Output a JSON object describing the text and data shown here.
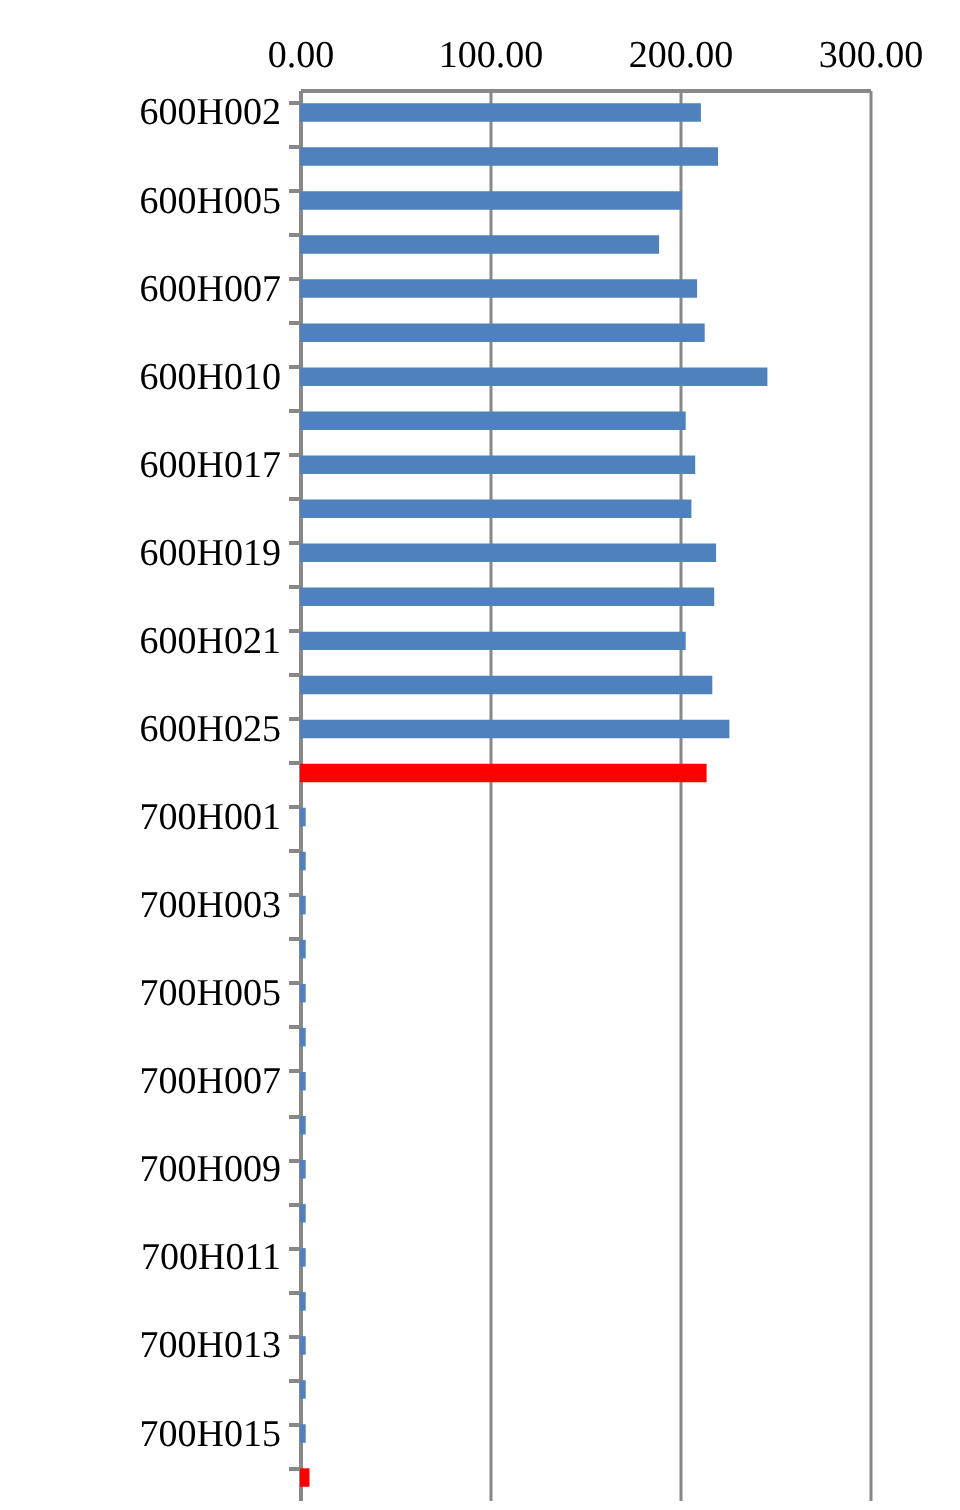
{
  "chart_data": {
    "type": "bar",
    "orientation": "horizontal",
    "categories": [
      "600H002",
      null,
      "600H005",
      null,
      "600H007",
      null,
      "600H010",
      null,
      "600H017",
      null,
      "600H019",
      null,
      "600H021",
      null,
      "600H025",
      null,
      "700H001",
      null,
      "700H003",
      null,
      "700H005",
      null,
      "700H007",
      null,
      "700H009",
      null,
      "700H011",
      null,
      "700H013",
      null,
      "700H015",
      null
    ],
    "values": [
      211,
      220,
      201,
      189,
      209,
      213,
      246,
      203,
      208,
      206,
      219,
      218,
      203,
      217,
      226,
      214,
      3,
      3,
      3,
      3,
      3,
      3,
      3,
      3,
      3,
      3,
      3,
      3,
      3,
      3,
      3,
      5
    ],
    "colors": [
      "#4f81bd",
      "#4f81bd",
      "#4f81bd",
      "#4f81bd",
      "#4f81bd",
      "#4f81bd",
      "#4f81bd",
      "#4f81bd",
      "#4f81bd",
      "#4f81bd",
      "#4f81bd",
      "#4f81bd",
      "#4f81bd",
      "#4f81bd",
      "#4f81bd",
      "#ff0000",
      "#4f81bd",
      "#4f81bd",
      "#4f81bd",
      "#4f81bd",
      "#4f81bd",
      "#4f81bd",
      "#4f81bd",
      "#4f81bd",
      "#4f81bd",
      "#4f81bd",
      "#4f81bd",
      "#4f81bd",
      "#4f81bd",
      "#4f81bd",
      "#4f81bd",
      "#ff0000"
    ],
    "xlim": [
      0,
      300
    ],
    "xticks": [
      {
        "value": 0,
        "label": "0.00"
      },
      {
        "value": 100,
        "label": "100.00"
      },
      {
        "value": 200,
        "label": "200.00"
      },
      {
        "value": 300,
        "label": "300.00"
      }
    ],
    "grid": "x"
  }
}
